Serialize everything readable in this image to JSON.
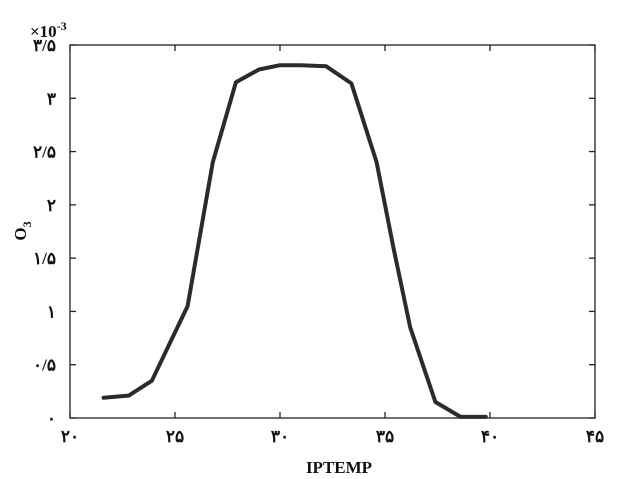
{
  "chart_data": {
    "type": "line",
    "xlabel": "IPTEMP",
    "ylabel_main": "O",
    "ylabel_sub": "3",
    "y_exponent_base": "×10",
    "y_exponent_power": "-3",
    "xlim": [
      20,
      45
    ],
    "ylim": [
      0,
      3.5
    ],
    "x_ticks": [
      20,
      25,
      30,
      35,
      40,
      45
    ],
    "x_tick_labels": [
      "۲۰",
      "۲۵",
      "۳۰",
      "۳۵",
      "۴۰",
      "۴۵"
    ],
    "y_ticks": [
      0,
      0.5,
      1,
      1.5,
      2,
      2.5,
      3,
      3.5
    ],
    "y_tick_labels": [
      "۰",
      "۰/۵",
      "۱",
      "۱/۵",
      "۲",
      "۲/۵",
      "۳",
      "۳/۵"
    ],
    "grid": false,
    "series": [
      {
        "color": "#2b2b2b",
        "x": [
          21.6,
          22.8,
          23.9,
          24.7,
          25.6,
          26.8,
          27.9,
          29.0,
          30.0,
          31.0,
          32.2,
          33.4,
          34.6,
          35.4,
          36.2,
          37.4,
          38.6,
          39.8
        ],
        "y": [
          0.19,
          0.21,
          0.35,
          0.68,
          1.05,
          2.4,
          3.15,
          3.27,
          3.31,
          3.31,
          3.3,
          3.14,
          2.4,
          1.6,
          0.85,
          0.15,
          0.01,
          0.01
        ]
      }
    ]
  }
}
